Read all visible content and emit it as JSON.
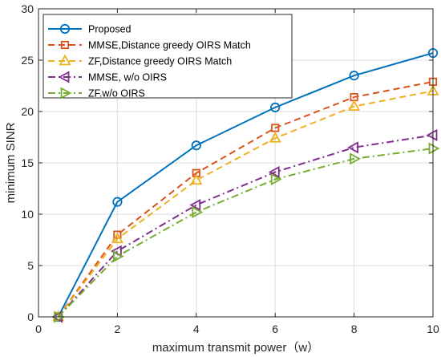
{
  "chart_data": {
    "type": "line",
    "xlabel": "maximum transmit power（w）",
    "ylabel": "minimum SINR",
    "xlim": [
      0,
      10
    ],
    "ylim": [
      0,
      30
    ],
    "xticks": [
      "0",
      "2",
      "4",
      "6",
      "8",
      "10"
    ],
    "yticks": [
      "0",
      "5",
      "10",
      "15",
      "20",
      "25",
      "30"
    ],
    "grid": true,
    "legend_position": "top-left",
    "series": [
      {
        "name": "Proposed",
        "color": "#0072BD",
        "line": "solid",
        "marker": "circle",
        "x": [
          0.5,
          2,
          4,
          6,
          8,
          10
        ],
        "y": [
          0,
          11.2,
          16.7,
          20.4,
          23.5,
          25.7
        ]
      },
      {
        "name": "MMSE,Distance greedy OIRS Match",
        "color": "#D95319",
        "line": "dashed",
        "marker": "square",
        "x": [
          0.5,
          2,
          4,
          6,
          8,
          10
        ],
        "y": [
          0,
          8.0,
          14.0,
          18.4,
          21.4,
          22.9
        ]
      },
      {
        "name": "ZF,Distance greedy OIRS Match",
        "color": "#EDB120",
        "line": "dashed",
        "marker": "triangle-up",
        "x": [
          0.5,
          2,
          4,
          6,
          8,
          10
        ],
        "y": [
          0,
          7.6,
          13.3,
          17.4,
          20.5,
          22.0
        ]
      },
      {
        "name": "MMSE, w/o OIRS",
        "color": "#7E2F8E",
        "line": "dashdot",
        "marker": "triangle-left",
        "x": [
          0.5,
          2,
          4,
          6,
          8,
          10
        ],
        "y": [
          0,
          6.4,
          10.9,
          14.1,
          16.5,
          17.7
        ]
      },
      {
        "name": "ZF.w/o OIRS",
        "color": "#77AC30",
        "line": "dashdot",
        "marker": "triangle-right",
        "x": [
          0.5,
          2,
          4,
          6,
          8,
          10
        ],
        "y": [
          0,
          5.9,
          10.2,
          13.4,
          15.4,
          16.4
        ]
      }
    ]
  }
}
